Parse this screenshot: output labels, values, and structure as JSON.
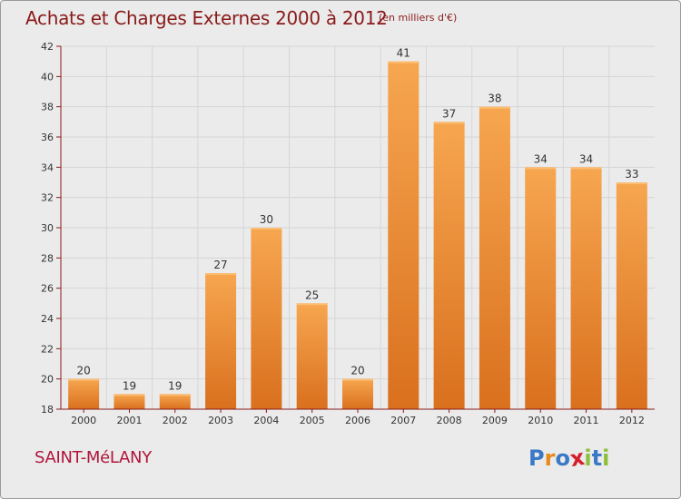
{
  "header": {
    "title": "Achats et Charges Externes 2000 à 2012",
    "unit": "(en milliers d'€)"
  },
  "footer": {
    "place": "SAINT-MéLANY",
    "logo": "Proxiti",
    "logo_letters": [
      {
        "ch": "P",
        "color": "#3a79c6"
      },
      {
        "ch": "r",
        "color": "#e8891d"
      },
      {
        "ch": "o",
        "color": "#3a79c6"
      },
      {
        "ch": "x",
        "color": "#d61d2a"
      },
      {
        "ch": "i",
        "color": "#8cbf3a"
      },
      {
        "ch": "t",
        "color": "#3a79c6"
      },
      {
        "ch": "i",
        "color": "#8cbf3a"
      }
    ]
  },
  "colors": {
    "bar_light": "#f7a650",
    "bar_dark": "#d9701e",
    "axis": "#8a1a1a",
    "grid": "#d6d6d6",
    "text": "#8a1a1a",
    "label": "#333333",
    "place": "#b0153c"
  },
  "chart_data": {
    "type": "bar",
    "title": "Achats et Charges Externes 2000 à 2012",
    "subtitle": "(en milliers d'€)",
    "categories": [
      "2000",
      "2001",
      "2002",
      "2003",
      "2004",
      "2005",
      "2006",
      "2007",
      "2008",
      "2009",
      "2010",
      "2011",
      "2012"
    ],
    "values": [
      20,
      19,
      19,
      27,
      30,
      25,
      20,
      41,
      37,
      38,
      34,
      34,
      33
    ],
    "ylim": [
      18,
      42
    ],
    "yticks": [
      18,
      20,
      22,
      24,
      26,
      28,
      30,
      32,
      34,
      36,
      38,
      40,
      42
    ],
    "grid": true,
    "xlabel": "",
    "ylabel": ""
  }
}
